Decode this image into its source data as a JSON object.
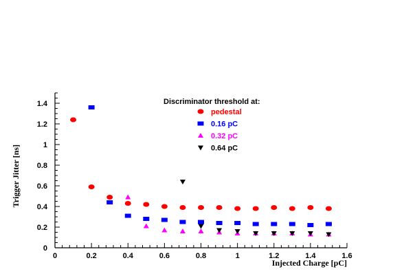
{
  "chart_data": {
    "type": "scatter",
    "xlabel": "Injected Charge [pC]",
    "ylabel": "Trigger Jitter [ns]",
    "xlim": [
      0,
      1.6
    ],
    "ylim": [
      0,
      1.5
    ],
    "x_ticks": [
      0,
      0.2,
      0.4,
      0.6,
      0.8,
      1,
      1.2,
      1.4,
      1.6
    ],
    "x_tick_labels": [
      "0",
      "0.2",
      "0.4",
      "0.6",
      "0.8",
      "1",
      "1.2",
      "1.4",
      "1.6"
    ],
    "y_ticks": [
      0,
      0.2,
      0.4,
      0.6,
      0.8,
      1,
      1.2,
      1.4
    ],
    "y_tick_labels": [
      "0",
      "0.2",
      "0.4",
      "0.6",
      "0.8",
      "1",
      "1.2",
      "1.4"
    ],
    "grid": false,
    "legend": {
      "title": "Discriminator threshold at:",
      "placement": "top-right"
    },
    "series": [
      {
        "name": "pedestal",
        "color": "#ff0000",
        "marker": "circle",
        "points": [
          [
            0.1,
            1.24
          ],
          [
            0.2,
            0.59
          ],
          [
            0.3,
            0.49
          ],
          [
            0.4,
            0.43
          ],
          [
            0.5,
            0.42
          ],
          [
            0.6,
            0.4
          ],
          [
            0.7,
            0.39
          ],
          [
            0.8,
            0.39
          ],
          [
            0.9,
            0.39
          ],
          [
            1.0,
            0.38
          ],
          [
            1.1,
            0.38
          ],
          [
            1.2,
            0.39
          ],
          [
            1.3,
            0.38
          ],
          [
            1.4,
            0.39
          ],
          [
            1.5,
            0.38
          ]
        ]
      },
      {
        "name": "0.16 pC",
        "color": "#0000ff",
        "marker": "square",
        "points": [
          [
            0.2,
            1.36
          ],
          [
            0.3,
            0.44
          ],
          [
            0.4,
            0.31
          ],
          [
            0.5,
            0.28
          ],
          [
            0.6,
            0.27
          ],
          [
            0.7,
            0.25
          ],
          [
            0.8,
            0.25
          ],
          [
            0.9,
            0.24
          ],
          [
            1.0,
            0.24
          ],
          [
            1.1,
            0.23
          ],
          [
            1.2,
            0.23
          ],
          [
            1.3,
            0.23
          ],
          [
            1.4,
            0.22
          ],
          [
            1.5,
            0.23
          ]
        ]
      },
      {
        "name": "0.32 pC",
        "color": "#ff00ff",
        "marker": "triangle-up",
        "points": [
          [
            0.4,
            0.49
          ],
          [
            0.5,
            0.21
          ],
          [
            0.6,
            0.17
          ],
          [
            0.7,
            0.16
          ],
          [
            0.8,
            0.16
          ],
          [
            0.9,
            0.15
          ],
          [
            1.0,
            0.14
          ],
          [
            1.1,
            0.14
          ],
          [
            1.2,
            0.14
          ],
          [
            1.3,
            0.14
          ],
          [
            1.4,
            0.13
          ],
          [
            1.5,
            0.13
          ]
        ]
      },
      {
        "name": "0.64 pC",
        "color": "#000000",
        "marker": "triangle-down",
        "points": [
          [
            0.7,
            0.64
          ],
          [
            0.8,
            0.21
          ],
          [
            0.9,
            0.17
          ],
          [
            1.0,
            0.16
          ],
          [
            1.1,
            0.14
          ],
          [
            1.2,
            0.14
          ],
          [
            1.3,
            0.14
          ],
          [
            1.4,
            0.14
          ],
          [
            1.5,
            0.13
          ]
        ]
      }
    ]
  }
}
